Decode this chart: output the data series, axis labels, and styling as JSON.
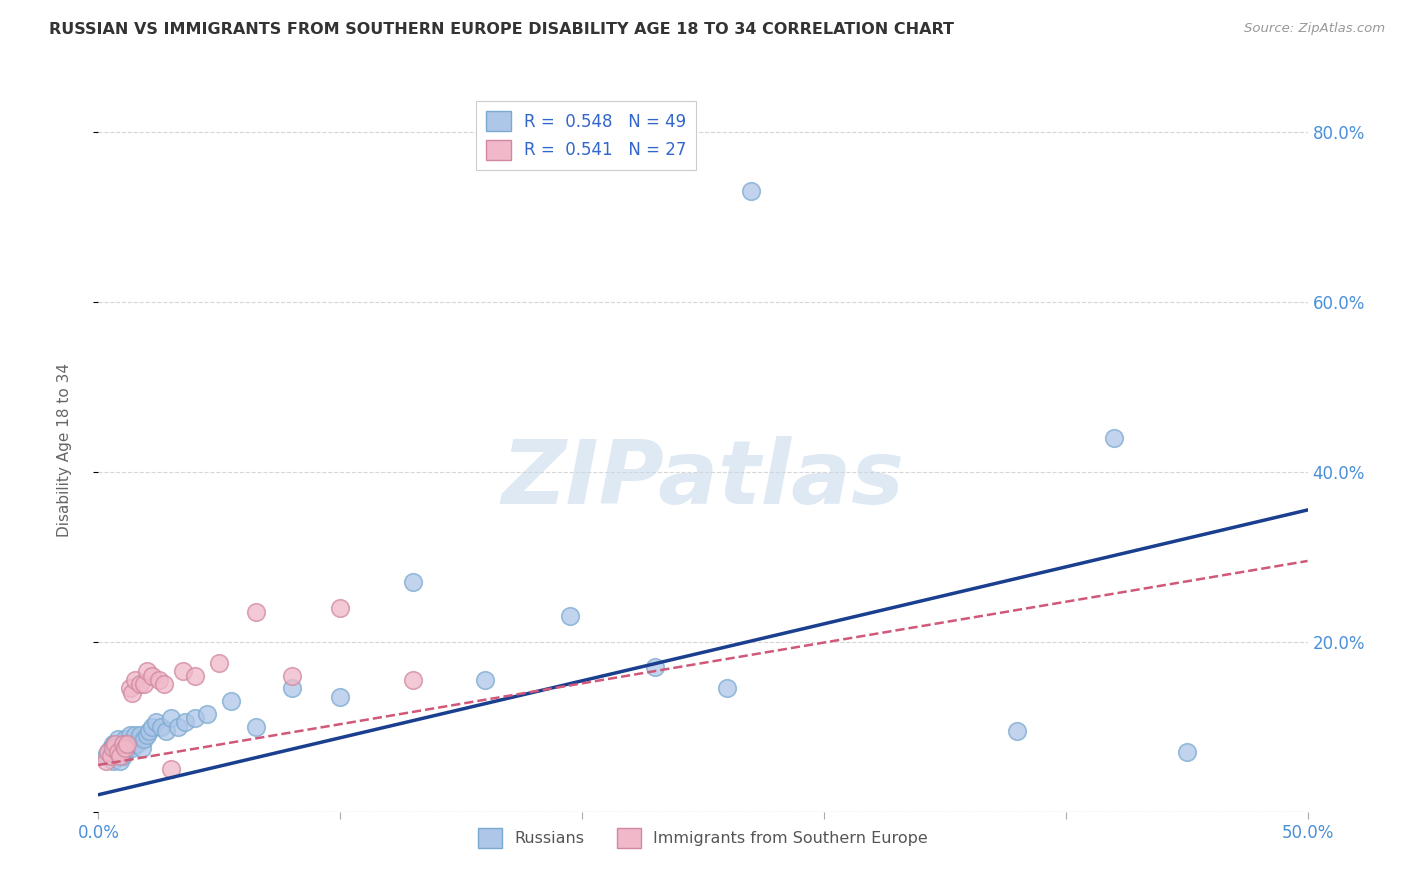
{
  "title": "RUSSIAN VS IMMIGRANTS FROM SOUTHERN EUROPE DISABILITY AGE 18 TO 34 CORRELATION CHART",
  "source": "Source: ZipAtlas.com",
  "ylabel": "Disability Age 18 to 34",
  "xlim": [
    0.0,
    0.5
  ],
  "ylim": [
    0.0,
    0.85
  ],
  "russian_R": 0.548,
  "russian_N": 49,
  "immigrant_R": 0.541,
  "immigrant_N": 27,
  "series1_color": "#aec6e8",
  "series2_color": "#f0b8c8",
  "series1_edge": "#7aaad0",
  "series2_edge": "#d088a0",
  "trend1_color": "#1a3f8f",
  "trend2_color": "#d05878",
  "watermark": "ZIPatlas",
  "legend_label1": "Russians",
  "legend_label2": "Immigrants from Southern Europe",
  "russians_x": [
    0.003,
    0.004,
    0.005,
    0.006,
    0.006,
    0.007,
    0.007,
    0.008,
    0.008,
    0.009,
    0.009,
    0.01,
    0.01,
    0.011,
    0.011,
    0.012,
    0.013,
    0.013,
    0.014,
    0.015,
    0.015,
    0.016,
    0.017,
    0.018,
    0.019,
    0.02,
    0.021,
    0.022,
    0.024,
    0.026,
    0.028,
    0.03,
    0.033,
    0.036,
    0.04,
    0.045,
    0.055,
    0.065,
    0.08,
    0.1,
    0.13,
    0.16,
    0.195,
    0.23,
    0.26,
    0.27,
    0.38,
    0.42,
    0.45
  ],
  "russians_y": [
    0.065,
    0.07,
    0.075,
    0.06,
    0.08,
    0.065,
    0.08,
    0.07,
    0.085,
    0.06,
    0.075,
    0.065,
    0.08,
    0.07,
    0.085,
    0.075,
    0.08,
    0.09,
    0.075,
    0.08,
    0.09,
    0.08,
    0.09,
    0.075,
    0.085,
    0.09,
    0.095,
    0.1,
    0.105,
    0.1,
    0.095,
    0.11,
    0.1,
    0.105,
    0.11,
    0.115,
    0.13,
    0.1,
    0.145,
    0.135,
    0.27,
    0.155,
    0.23,
    0.17,
    0.145,
    0.73,
    0.095,
    0.44,
    0.07
  ],
  "immigrants_x": [
    0.003,
    0.004,
    0.005,
    0.006,
    0.007,
    0.008,
    0.009,
    0.01,
    0.011,
    0.012,
    0.013,
    0.014,
    0.015,
    0.017,
    0.019,
    0.02,
    0.022,
    0.025,
    0.027,
    0.03,
    0.035,
    0.04,
    0.05,
    0.065,
    0.08,
    0.1,
    0.13
  ],
  "immigrants_y": [
    0.06,
    0.07,
    0.065,
    0.075,
    0.08,
    0.07,
    0.065,
    0.08,
    0.075,
    0.08,
    0.145,
    0.14,
    0.155,
    0.15,
    0.15,
    0.165,
    0.16,
    0.155,
    0.15,
    0.05,
    0.165,
    0.16,
    0.175,
    0.235,
    0.16,
    0.24,
    0.155
  ]
}
